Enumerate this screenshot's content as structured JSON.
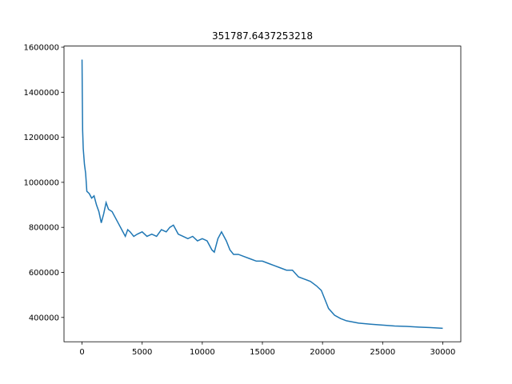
{
  "chart_data": {
    "type": "line",
    "title": "351787.6437253218",
    "x": [
      0,
      20,
      50,
      100,
      200,
      300,
      400,
      600,
      800,
      1000,
      1200,
      1400,
      1600,
      1800,
      2000,
      2200,
      2500,
      2800,
      3000,
      3300,
      3600,
      3800,
      4000,
      4300,
      4600,
      5000,
      5400,
      5800,
      6200,
      6600,
      7000,
      7300,
      7600,
      8000,
      8400,
      8800,
      9200,
      9600,
      10000,
      10400,
      10800,
      11000,
      11300,
      11600,
      12000,
      12300,
      12600,
      13000,
      13500,
      14000,
      14500,
      15000,
      15500,
      16000,
      16500,
      17000,
      17500,
      18000,
      18500,
      19000,
      19500,
      19900,
      20200,
      20500,
      21000,
      21500,
      22000,
      23000,
      24000,
      25000,
      26000,
      27000,
      28000,
      29000,
      30000
    ],
    "series": [
      {
        "color": "#1f77b4",
        "values": [
          1545000,
          1400000,
          1230000,
          1150000,
          1080000,
          1040000,
          960000,
          950000,
          930000,
          940000,
          900000,
          870000,
          820000,
          860000,
          910000,
          880000,
          870000,
          840000,
          820000,
          790000,
          760000,
          790000,
          780000,
          760000,
          770000,
          780000,
          760000,
          770000,
          760000,
          790000,
          780000,
          800000,
          810000,
          770000,
          760000,
          750000,
          760000,
          740000,
          750000,
          740000,
          700000,
          690000,
          750000,
          780000,
          740000,
          700000,
          680000,
          680000,
          670000,
          660000,
          650000,
          650000,
          640000,
          630000,
          620000,
          610000,
          610000,
          580000,
          570000,
          560000,
          540000,
          520000,
          480000,
          440000,
          410000,
          395000,
          385000,
          375000,
          370000,
          366000,
          362000,
          360000,
          357000,
          355000,
          351788
        ]
      }
    ],
    "xlim": [
      -1500,
      31500
    ],
    "ylim": [
      292000,
      1605000
    ],
    "xticks": [
      0,
      5000,
      10000,
      15000,
      20000,
      25000,
      30000
    ],
    "yticks": [
      400000,
      600000,
      800000,
      1000000,
      1200000,
      1400000,
      1600000
    ]
  }
}
